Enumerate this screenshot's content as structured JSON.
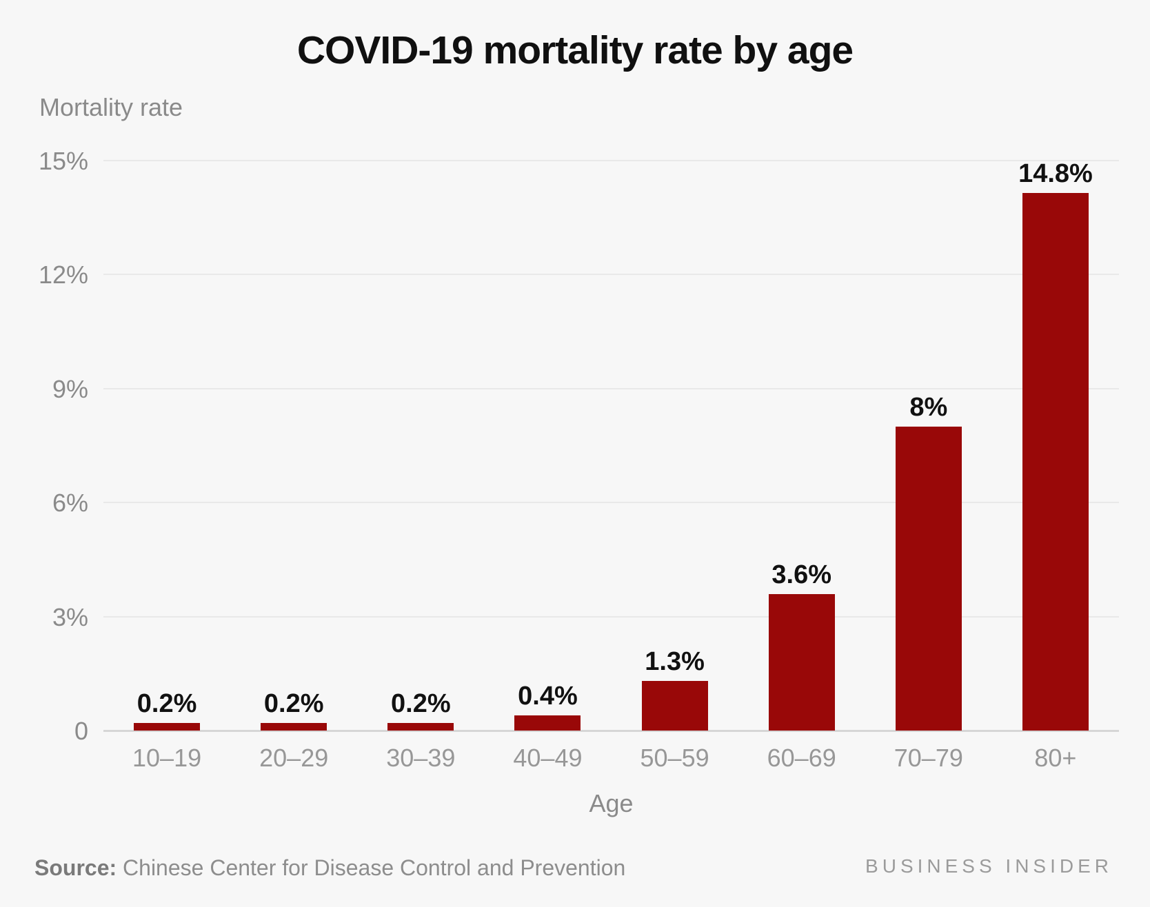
{
  "chart_data": {
    "type": "bar",
    "title": "COVID-19 mortality rate by age",
    "xlabel": "Age",
    "ylabel": "Mortality rate",
    "categories": [
      "10–19",
      "20–29",
      "30–39",
      "40–49",
      "50–59",
      "60–69",
      "70–79",
      "80+"
    ],
    "values": [
      0.2,
      0.2,
      0.2,
      0.4,
      1.3,
      3.6,
      8,
      14.8
    ],
    "value_labels": [
      "0.2%",
      "0.2%",
      "0.2%",
      "0.4%",
      "1.3%",
      "3.6%",
      "8%",
      "14.8%"
    ],
    "y_ticks": [
      {
        "label": "15%",
        "value": 15
      },
      {
        "label": "12%",
        "value": 12
      },
      {
        "label": "9%",
        "value": 9
      },
      {
        "label": "6%",
        "value": 6
      },
      {
        "label": "3%",
        "value": 3
      },
      {
        "label": "0",
        "value": 0
      }
    ],
    "ylim": [
      0,
      15
    ],
    "grid": "horizontal gridlines on",
    "legend": "none",
    "bar_color": "#990808"
  },
  "footer": {
    "source_label": "Source:",
    "source_text": " Chinese Center for Disease Control and Prevention",
    "brand": "BUSINESS INSIDER"
  },
  "colors": {
    "background": "#f7f7f7",
    "bar": "#990808",
    "title_text": "#101010",
    "muted_text": "#8a8a8a",
    "gridline": "#e9e9e9",
    "baseline": "#d6d6d6"
  }
}
